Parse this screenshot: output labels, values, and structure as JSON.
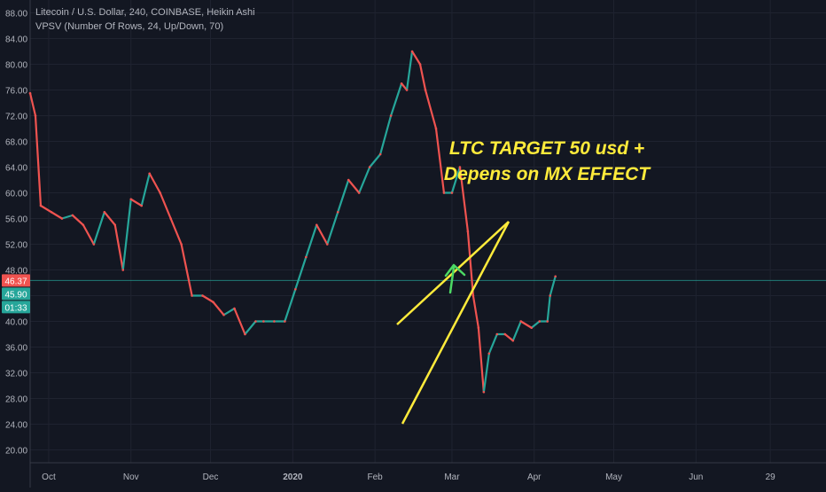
{
  "header": {
    "symbol_line": "Litecoin / U.S. Dollar, 240, COINBASE, Heikin Ashi",
    "indicator_line": "VPSV (Number Of Rows, 24, Up/Down, 70)"
  },
  "colors": {
    "background": "#131722",
    "grid": "#1f2330",
    "text": "#b2b5be",
    "up": "#26a69a",
    "down": "#ef5350",
    "annotation": "#ffeb3b",
    "arrow": "#4cd964"
  },
  "annotation": {
    "line1": "LTC TARGET 50 usd +",
    "line2": "Depens on MX EFFECT"
  },
  "price_badges": [
    {
      "text": "46.37",
      "color": "#ef5350"
    },
    {
      "text": "45.90",
      "color": "#26a69a"
    },
    {
      "text": "01:33",
      "color": "#26a69a"
    }
  ],
  "chart_data": {
    "type": "line",
    "ylim": [
      18,
      90
    ],
    "y_ticks": [
      20.0,
      24.0,
      28.0,
      32.0,
      36.0,
      40.0,
      44.0,
      48.0,
      52.0,
      56.0,
      60.0,
      64.0,
      68.0,
      72.0,
      76.0,
      80.0,
      84.0,
      88.0
    ],
    "y_tick_labels": [
      "20.00",
      "24.00",
      "28.00",
      "32.00",
      "36.00",
      "40.00",
      "44.00",
      "48.00",
      "52.00",
      "56.00",
      "60.00",
      "64.00",
      "68.00",
      "72.00",
      "76.00",
      "80.00",
      "84.00",
      "88.00"
    ],
    "x_tick_labels": [
      "Oct",
      "Nov",
      "Dec",
      "2020",
      "Feb",
      "Mar",
      "Apr",
      "May",
      "Jun",
      "29"
    ],
    "x_ticks": [
      "2019-10-01",
      "2019-11-01",
      "2019-12-01",
      "2020-01-01",
      "2020-02-01",
      "2020-03-01",
      "2020-04-01",
      "2020-05-01",
      "2020-06-01",
      "2020-06-29"
    ],
    "x_range": [
      "2019-09-24",
      "2020-07-20"
    ],
    "last_price": 46.37,
    "series": [
      {
        "x": [
          "2019-09-24",
          "2019-09-26",
          "2019-09-28",
          "2019-10-02",
          "2019-10-06",
          "2019-10-10",
          "2019-10-14",
          "2019-10-18",
          "2019-10-22",
          "2019-10-26",
          "2019-10-29",
          "2019-11-01",
          "2019-11-05",
          "2019-11-08",
          "2019-11-12",
          "2019-11-16",
          "2019-11-20",
          "2019-11-24",
          "2019-11-28",
          "2019-12-02",
          "2019-12-06",
          "2019-12-10",
          "2019-12-14",
          "2019-12-18",
          "2019-12-21",
          "2019-12-25",
          "2019-12-29",
          "2020-01-02",
          "2020-01-06",
          "2020-01-10",
          "2020-01-14",
          "2020-01-18",
          "2020-01-22",
          "2020-01-26",
          "2020-01-30",
          "2020-02-03",
          "2020-02-07",
          "2020-02-11",
          "2020-02-13",
          "2020-02-15",
          "2020-02-18",
          "2020-02-20",
          "2020-02-24",
          "2020-02-27",
          "2020-03-01",
          "2020-03-04",
          "2020-03-07",
          "2020-03-09",
          "2020-03-11",
          "2020-03-13",
          "2020-03-15",
          "2020-03-18",
          "2020-03-21",
          "2020-03-24",
          "2020-03-27",
          "2020-03-31",
          "2020-04-03",
          "2020-04-06",
          "2020-04-07",
          "2020-04-09"
        ],
        "values": [
          75.5,
          72,
          58,
          57,
          56,
          56.5,
          55,
          52,
          57,
          55,
          48,
          59,
          58,
          63,
          60,
          56,
          52,
          44,
          44,
          43,
          41,
          42,
          38,
          40,
          40,
          40,
          40,
          45,
          50,
          55,
          52,
          57,
          62,
          60,
          64,
          66,
          72,
          77,
          76,
          82,
          80,
          76,
          70,
          60,
          60,
          64,
          54,
          44,
          39,
          29,
          35,
          38,
          38,
          37,
          40,
          39,
          40,
          40,
          44,
          47
        ]
      }
    ]
  }
}
